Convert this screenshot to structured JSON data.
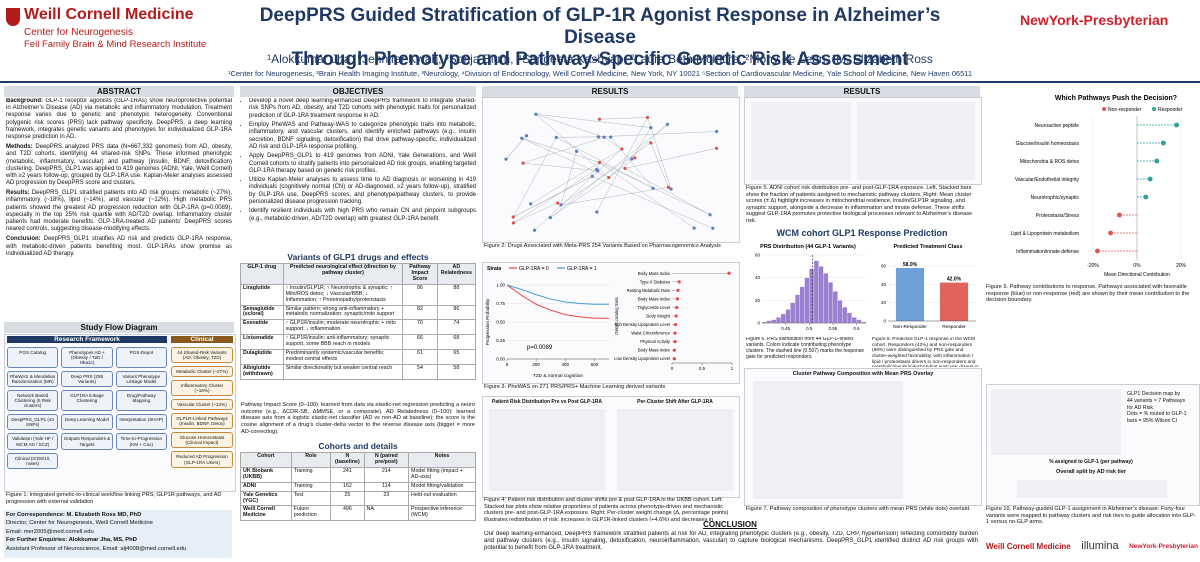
{
  "header": {
    "logo": "Weill Cornell Medicine",
    "logo_sub1": "Center for Neurogenesis",
    "logo_sub2": "Feil Family Brain & Mind Research Institute",
    "title_line1": "DeepPRS Guided Stratification of GLP-1R Agonist Response in Alzheimer’s Disease",
    "title_line2": "Through Phenotype and Pathway-Specific Genetic Risk Assessment",
    "authors": "¹Alokkumar Jha, ⁵Jennifer Kwan, ³Sonja Blum, ⁴Sangeeta Kashyap, ²Laura Beth McIntire, ²Mony de Leon, ¹M. Elizabeth Ross",
    "affiliations": "¹Center for Neurogenesis, ²Brain Health Imaging Institute, ³Neurology, ⁴Division of Endocrinology, Weill Cornell Medicine, New York, NY 10021 ⁵Section of Cardiovascular Medicine, Yale School of Medicine, New Haven 06511",
    "partner": "NewYork-Presbyterian"
  },
  "abstract": {
    "heading": "ABSTRACT",
    "paragraphs": [
      {
        "label": "Background:",
        "text": "GLP-1 receptor agonists (GLP-1RAs) show neuroprotective potential in Alzheimer’s Disease (AD) via metabolic and inflammatory modulation. Treatment response varies due to genetic and phenotypic heterogeneity. Conventional polygenic risk scores (PRS) lack pathway specificity. DeepPRS, a deep learning framework, integrates genetic variants and phenotypes for individualized GLP-1RA response prediction in AD."
      },
      {
        "label": "Methods:",
        "text": "DeepPRS analyzed PRS data (N=667,332 genomes) from AD, obesity, and T2D cohorts, identifying 44 shared-risk SNPs. These informed phenotypic (metabolic, inflammatory, vascular) and pathway (insulin, BDNF, detoxification) clustering. DeepPRS_GLP1 was applied to 419 genomes (ADNI, Yale, Weill Cornell) with ≥2 years follow-up, grouped by GLP-1RA use. Kaplan-Meier analyses assessed AD progression by DeepPRS score and clusters."
      },
      {
        "label": "Results:",
        "text": "DeepPRS_GLP1 stratified patients into AD risk groups: metabolic (~27%), inflammatory (~18%), lipid (~14%), and vascular (~12%). High metabolic PRS patients showed the greatest AD progression reduction with GLP-1RA (p=0.0089), especially in the top 25% risk quartile with AD/T2D overlap. Inflammatory cluster patients had moderate benefits. GLP-1RA-treated AD patients’ DeepPRS scores neared controls, suggesting disease-modifying effects."
      },
      {
        "label": "Conclusion:",
        "text": "DeepPRS_GLP1 stratifies AD risk and predicts GLP-1RA response, with metabolic-driven patients benefiting most. GLP-1RAs show promise as individualized AD therapy."
      }
    ]
  },
  "study_flow": {
    "heading": "Study Flow Diagram",
    "framework_title": "Research Framework",
    "framework_nodes": [
      "PGS Catalog",
      "Phenotypes AD + (Obesity / T2D / Hba1c)",
      "PGS-Depot",
      "PheWAS & Mendelian Randomization (MR)",
      "Deep PRS (255 Variants)",
      "Variant Phenotype Linkage Model",
      "Network Based Clustering (6 Risk clusters)",
      "GLP1RA linkage Clustering",
      "Drug/Pathway Mapping",
      "DeepPRS_GLP1 (44 SNPs)",
      "Deep Learning Model",
      "Interpretation (SHAP)",
      "Validation (Yale HF / WCM AD / SCZ)",
      "Outputs Responders & Targets",
      "Time-to-Progression (KM + Cox)",
      "Clinical (ICD9/10, notes)"
    ],
    "clinical_title": "Clinical",
    "clinical_nodes": [
      "44 Shared-Risk Variants (AD, Obesity, T2D)",
      "Metabolic Cluster (~27%)",
      "Inflammatory Cluster (~18%)",
      "Vascular Cluster (~12%)",
      "GLP1R-Linked Pathways (Insulin, BDNF, Detox)",
      "Glucose Homeostasis (Clinical Impact)",
      "Reduced AD Progression (GLP-1RA Users)"
    ],
    "caption": "Figure 1: Integrated genetic-to-clinical workflow linking PRS, GLP1R pathways, and AD progression with external validation"
  },
  "correspondence": {
    "lines": [
      "For Correspondence: M. Elizabeth Ross MD, PhD",
      "Director, Center for Neurogenesis, Weill Cornell Medicine",
      "Email: mer2005@med.cornell.edu",
      "For Further Enquiries: Alokkumar Jha, MS, PhD",
      "Assistant Professor of Neuroscience, Email: alj4008@med.cornell.edu"
    ]
  },
  "objectives": {
    "heading": "OBJECTIVES",
    "items": [
      "Develop a novel deep learning-enhanced DeepPRS framework to integrate shared-risk SNPs from AD, obesity, and T2D cohorts with phenotypic traits for personalized prediction of GLP-1RA treatment response in AD.",
      "Employ PheWAS and Pathway-WAS to categorize phenotypic traits into metabolic, inflammatory, and vascular clusters, and identify enriched pathways (e.g., insulin secretion, BDNF signaling, detoxification) that drive pathway-specific, individualized AD risk and GLP-1RA response profiling.",
      "Apply DeepPRS_GLP1 to 419 genomes from ADNI, Yale Generations, and Weill Cornell cohorts to stratify patients into personalized AD risk groups, enabling targeted GLP-1RA therapy based on genetic risk profiles.",
      "Utilize Kaplan-Meier analyses to assess time to AD diagnosis or worsening in 419 individuals (cognitively normal (CN) or AD-diagnosed, ≥2 years follow-up), stratified by GLP-1RA use, DeepPRS scores, and phenotype/pathway clusters, to provide personalized disease progression tracking.",
      "Identify resilient individuals with high PRS who remain CN and pinpoint subgroups (e.g., metabolic-driven, AD/T2D overlap) with greatest GLP-1RA benefit"
    ]
  },
  "variants": {
    "heading": "Variants of GLP1 drugs and effects",
    "columns": [
      "GLP-1 drug",
      "Predicted neurological effect (direction by pathway cluster)",
      "Pathway Impact Score",
      "AD Relatedness"
    ],
    "rows": [
      [
        "Liraglutide",
        "↑ Insulin/GLP1R; ↑ Neurotrophic & synaptic; ↑ Mito/ROS detox; ↓ Vascular/BBB; ↓ Inflammation; ↑ Proteinopathy/proteostasis",
        86,
        88
      ],
      [
        "Semaglutide (sc/oral)",
        "Similar pattern; strong anti-inflammatory + metabolic normalization; synaptic/mito support",
        82,
        86
      ],
      [
        "Exenatide",
        "↑ GLP1R/insulin; moderate neurotrophic + mito support; ↓ inflammation",
        70,
        74
      ],
      [
        "Lixisenatide",
        "↑ GLP1R/insulin; anti-inflammatory; synaptic support, some BBB reach in models",
        66,
        68
      ],
      [
        "Dulaglutide",
        "Predominantly systemic/vascular benefits; modest central effects",
        61,
        65
      ],
      [
        "Albiglutide (withdrawn)",
        "Similar directionality but weaker central reach",
        54,
        58
      ]
    ],
    "note": "Pathway Impact Score (0–100): learned from data via elastic-net regression predicting a neuro outcome (e.g., ΔCDR-SB, ΔMMSE, or a composite). AD Relatedness (0–100): learned disease axis from a logistic elastic-net classifier (AD vs non-AD at baseline); the score is the cosine alignment of a drug’s cluster-delta vector to the reverse disease axis (bigger = more AD-correcting)."
  },
  "cohorts": {
    "heading": "Cohorts and details",
    "columns": [
      "Cohort",
      "Role",
      "N (baseline)",
      "N (paired pre/post)",
      "Notes"
    ],
    "rows": [
      [
        "UK Biobank (UKBB)",
        "Training",
        241,
        214,
        "Model fitting (impact + AD-axis)"
      ],
      [
        "ADNI",
        "Training",
        162,
        114,
        "Model fitting/validation"
      ],
      [
        "Yale Genetics (YGC)",
        "Test",
        25,
        23,
        "Held-out evaluation"
      ],
      [
        "Weill Cornell Medicine",
        "Future prediction",
        496,
        "NA",
        "Prospective inference (WCM)"
      ]
    ]
  },
  "results_a": {
    "heading": "RESULTS",
    "fig2_caption": "Figure 2: Drugs Associated with Meta-PRS 254 Variants Based on Pharmacogenomics Analysis",
    "fig3": {
      "km": {
        "type": "line",
        "legend_title": "Strata",
        "y_label": "Progression Probability",
        "x_label": "T2D & normal cognition",
        "annotation": "p=0.0089",
        "x": [
          0,
          100,
          200,
          300,
          400,
          500,
          600,
          700
        ],
        "series": [
          {
            "name": "GLP-1RA = 0",
            "color": "#e8474c",
            "values": [
              1,
              0.86,
              0.74,
              0.66,
              0.6,
              0.57,
              0.55,
              0.55
            ]
          },
          {
            "name": "GLP-1RA = 1",
            "color": "#3fa0d8",
            "values": [
              1,
              0.94,
              0.87,
              0.81,
              0.77,
              0.75,
              0.74,
              0.74
            ]
          }
        ],
        "xlim": [
          0,
          700
        ],
        "xticks": [
          0,
          200,
          400,
          600
        ],
        "ylim": [
          0,
          1
        ],
        "yticks": [
          {
            "value": 0,
            "label": "0.00"
          },
          {
            "value": 0.25,
            "label": "0.25"
          },
          {
            "value": 0.5,
            "label": "0.50"
          },
          {
            "value": 0.75,
            "label": "0.75"
          },
          {
            "value": 1,
            "label": "1.00"
          }
        ]
      },
      "traits": {
        "type": "lollipop",
        "y_label": "GWAS catalog traits",
        "color": "#e8474c",
        "categories": [
          "Body Mass Index",
          "Type II Diabetes",
          "Resting Metabolic Rate",
          "Body Mass Index",
          "Triglyceride Level",
          "Body Weight",
          "High Density Lipoprotein Level",
          "Waist Circumference",
          "Physical Activity",
          "Body Mass Index",
          "Low Density Lipoprotein Level"
        ],
        "values": [
          0.95,
          0.12,
          0.1,
          0.09,
          0.08,
          0.07,
          0.06,
          0.05,
          0.05,
          0.04,
          0.04
        ],
        "xlim": [
          0,
          1
        ],
        "xticks": [
          0,
          0.5,
          1
        ]
      }
    },
    "fig3_caption": "Figure 3: PheWAS on 271 PRS/PRS+ Machine Learning derived variants",
    "fig4": {
      "left_title": "Patient Risk Distribution Pre vs Post GLP-1RA",
      "right_title": "Per-Cluster Shift After GLP-1RA"
    },
    "fig4_caption": "Figure 4: Patient risk distribution and cluster shifts pre & post GLP-1RA in the UKBB cohort. Left: Stacked bar plots show relative proportions of patients across phenotype-driven and mechanistic clusters pre- and post-GLP-1RA exposure. Right: Per-cluster weight change (Δ, percentage points) illustrates redistribution of risk; increases in GLP1R-linked clusters (+4.6%) and decreases in inflammation/vascular clusters (−3.6%) suggest pathway-targeted benefits of GLP-1 therapy."
  },
  "conclusion": {
    "heading": "CONCLUSION",
    "text": "Our deep learning-enhanced, DeepPRS framework stratified patients at risk for AD, integrating phenotypic clusters (e.g., obesity, T2D, CRP, hypertension) reflecting comorbidity burden and pathway clusters (e.g., insulin signaling, detoxification, neuroinflammation, vascular) to capture biological mechanisms. DeepPRS_GLP1 identified distinct AD risk groups with potential to benefit from GLP-1RA treatment."
  },
  "results_b": {
    "heading": "RESULTS",
    "fig5_caption": "Figure 5. ADNI cohort risk distribution pre- and post-GLP-1RA exposure. Left, Stacked bars show the fraction of patients assigned to mechanistic pathway clusters. Right: Mean cluster scores (± Δ) highlight increases in mitochondrial resilience, insulin/GLP1R signaling, and synaptic support, alongside a decrease in inflammation and innate defense. These shifts suggest GLP-1RA promotes protective biological processes relevant to Alzheimer’s disease risk.",
    "wcm_heading": "WCM cohort GLP1 Response Prediction",
    "fig6": {
      "type": "histogram",
      "title": "PRS Distribution (44 GLP-1 Variants)",
      "color": "#9b7fd0",
      "gate": 0.507,
      "bins": [
        0.4,
        0.41,
        0.42,
        0.43,
        0.44,
        0.45,
        0.46,
        0.47,
        0.48,
        0.49,
        0.5,
        0.51,
        0.52,
        0.53,
        0.54,
        0.55,
        0.56,
        0.57,
        0.58,
        0.59,
        0.6,
        0.61,
        0.62
      ],
      "counts": [
        1,
        2,
        3,
        5,
        8,
        12,
        18,
        25,
        32,
        40,
        48,
        55,
        50,
        44,
        36,
        28,
        20,
        14,
        9,
        5,
        3,
        1
      ],
      "xlim": [
        0.4,
        0.62
      ],
      "xticks": [
        0.45,
        0.5,
        0.55,
        0.6
      ],
      "ylim": [
        0,
        60
      ],
      "yticks": [
        0,
        20,
        40,
        60
      ]
    },
    "fig6_caption": "Figure 6. PRS distribution from 44 GLP-1–linked variants. Colors indicate contributing phenotype clusters. The dashed line (0.507) marks the response gate for predicted responders.",
    "fig8": {
      "type": "bar",
      "title": "Predicted Treatment Class",
      "categories": [
        "Non-Responder",
        "Responder"
      ],
      "values": [
        58,
        42
      ],
      "value_labels": [
        "58.0%",
        "42.0%"
      ],
      "colors": [
        "#6f9fd8",
        "#e0645c"
      ],
      "ylim": [
        0,
        70
      ],
      "yticks": [
        0,
        20,
        40,
        60
      ]
    },
    "fig8_caption": "Figure 8. Predicted GLP-1 response in the WCM cohort. Responders (42%) and non-responders (58%) were distinguished by PRS gate and cluster-weighted favorability, with inflammation / lipid / proteostasis drivers in non-responders and metabolic/insulin/mitochondrial /vascular drivers in responders.",
    "fig7_title": "Cluster Pathway Composition with Mean PRS Overlay",
    "fig7_caption": "Figure 7. Pathway composition of phenotype clusters with mean PRS (white dots) overlaid."
  },
  "fig9": {
    "type": "lollipop",
    "title": "Which Pathways Push the Decision?",
    "x_label": "Mean Directional Contribution",
    "series": [
      {
        "name": "Non-responder",
        "color": "#e05555"
      },
      {
        "name": "Responder",
        "color": "#2aa198"
      }
    ],
    "categories": [
      "Neuroactive peptide",
      "Glucose/insulin homeostasis",
      "Mitochondria & ROS detox",
      "Vascular/Endothelial integrity",
      "Neurotrophic/synaptic",
      "Proteostasis/Stress",
      "Lipid & Lipoprotein metabolism",
      "Inflammation/innate defense"
    ],
    "values": [
      18,
      12,
      9,
      6,
      4,
      -8,
      -12,
      -18
    ],
    "xlim": [
      -25,
      25
    ],
    "xticks": [
      {
        "value": -20,
        "label": "-20%"
      },
      {
        "value": 0,
        "label": "0%"
      },
      {
        "value": 20,
        "label": "20%"
      }
    ],
    "caption": "Figure 9. Pathway contributions to response. Pathways associated with favorable response (blue) or non-response (red) are shown by their mean contribution to the decision boundary."
  },
  "fig10": {
    "annotation_lines": [
      "GLP1 Decision map by",
      "44 variants × 7 Pathways",
      "for AD Risk",
      "Dots = % routed to GLP-1",
      "bars = 95% Wilson CI"
    ],
    "subtitle1": "% assigned to GLP-1 (per pathway)",
    "subtitle2": "Overall split by AD risk tier",
    "caption": "Figure 10. Pathway-guided GLP-1 assignment in Alzheimer’s disease: Forty-four variants were mapped to pathway clusters and risk tiers to guide allocation into GLP-1 versus no-GLP arms."
  },
  "logos": [
    "Weill Cornell Medicine",
    "illumina",
    "NewYork-Presbyterian"
  ]
}
